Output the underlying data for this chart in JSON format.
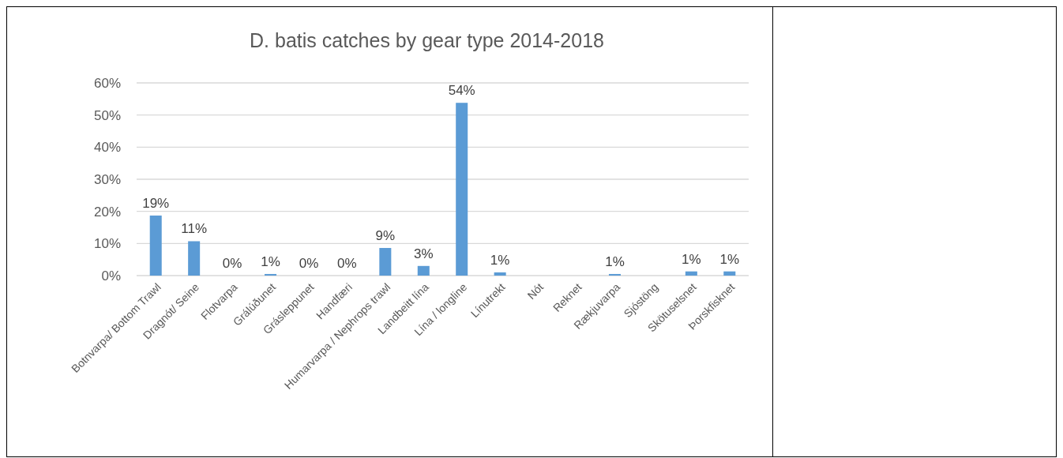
{
  "chart_data": {
    "type": "bar",
    "title": "D. batis catches by gear type 2014-2018",
    "categories": [
      "Botnvarpa/ Bottom Trawl",
      "Dragnót/ Seine",
      "Flotvarpa",
      "Grálúðunet",
      "Grásleppunet",
      "Handfæri",
      "Humarvarpa / Nephrops trawl",
      "Landbeitt lína",
      "Lína / longline",
      "Línutrekt",
      "Nót",
      "Reknet",
      "Rækjuvarpa",
      "Sjóstöng",
      "Skötuselsnet",
      "Þorskfisknet"
    ],
    "values": [
      18.7,
      10.7,
      0,
      0.5,
      0,
      0,
      8.6,
      3.0,
      53.8,
      1.0,
      0,
      0,
      0.5,
      0,
      1.3,
      1.3
    ],
    "value_labels": [
      "19%",
      "11%",
      "0%",
      "1%",
      "0%",
      "0%",
      "9%",
      "3%",
      "54%",
      "1%",
      null,
      null,
      "1%",
      null,
      "1%",
      "1%"
    ],
    "color": "#5b9bd5",
    "ylim": [
      0,
      60
    ],
    "yticks": [
      {
        "value": 0,
        "label": "0%"
      },
      {
        "value": 10,
        "label": "10%"
      },
      {
        "value": 20,
        "label": "20%"
      },
      {
        "value": 30,
        "label": "30%"
      },
      {
        "value": 40,
        "label": "40%"
      },
      {
        "value": 50,
        "label": "50%"
      },
      {
        "value": 60,
        "label": "60%"
      }
    ],
    "grid": "y"
  }
}
